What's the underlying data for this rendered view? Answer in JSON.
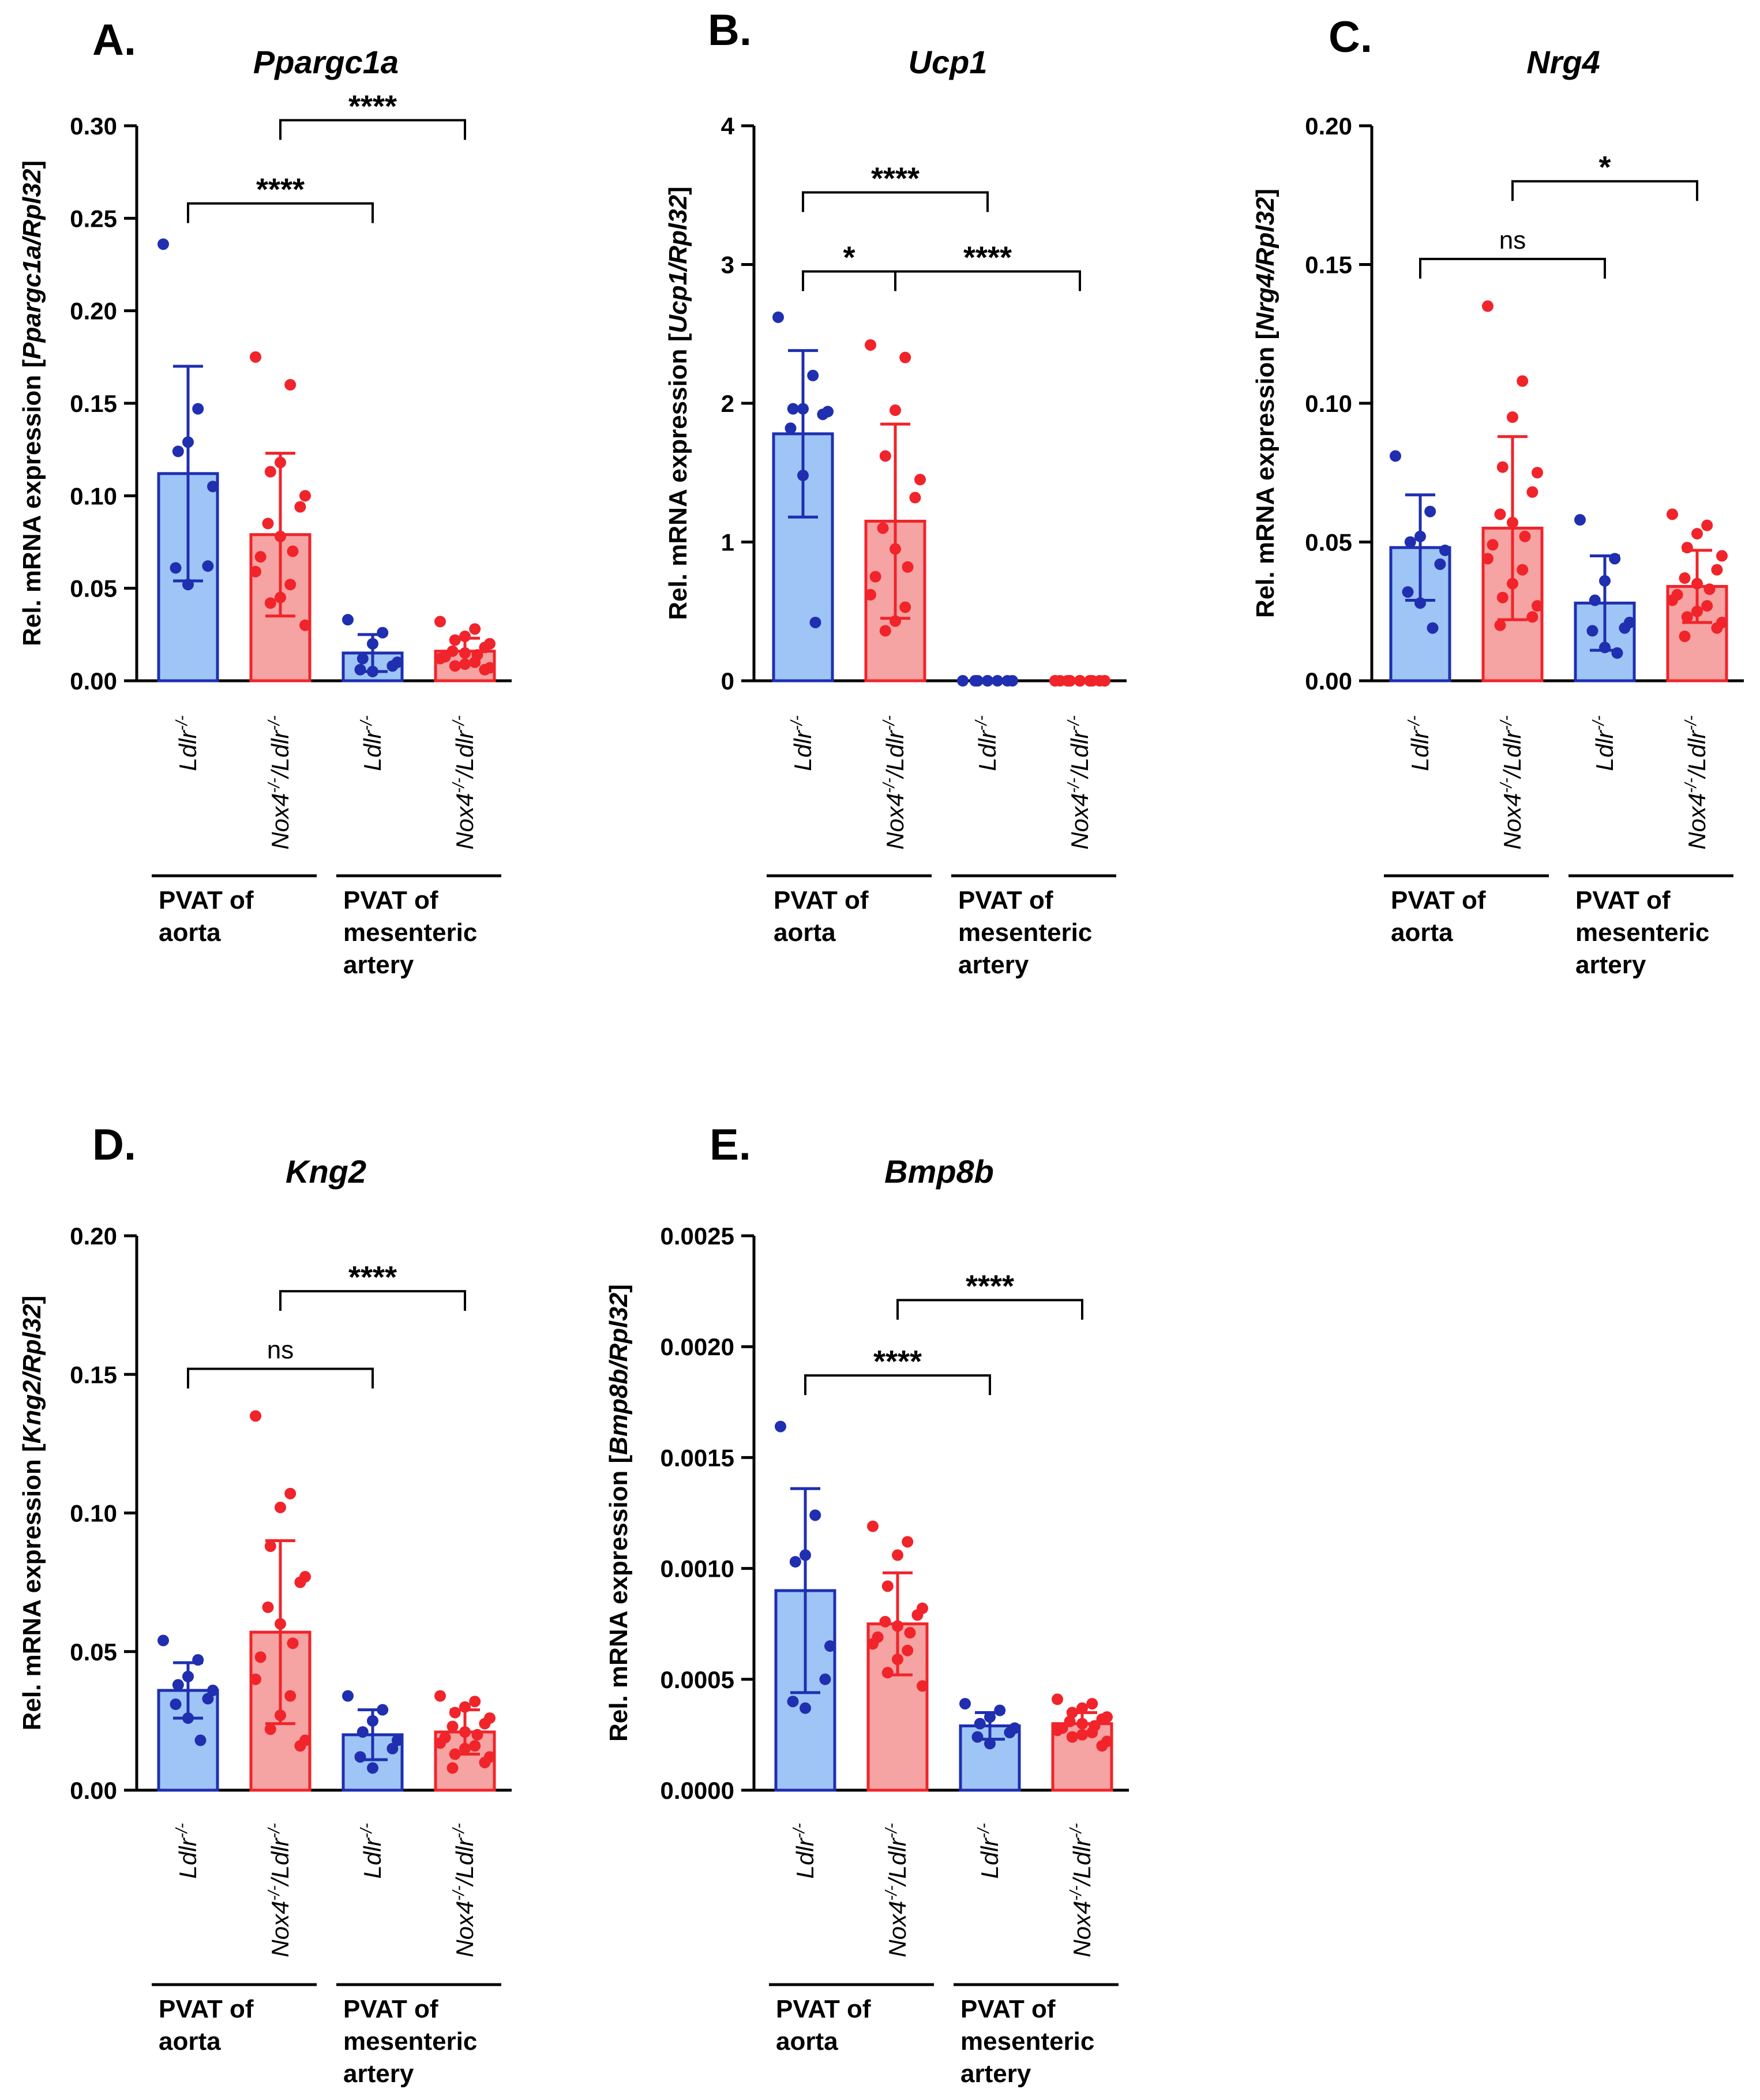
{
  "colors": {
    "blue_fill": "#9ec5f5",
    "blue_stroke": "#1f2fb0",
    "blue_dot": "#1f2fb0",
    "red_fill": "#f5a3a3",
    "red_stroke": "#f0242a",
    "red_dot": "#f0242a",
    "axis": "#000000"
  },
  "chart_data": [
    {
      "panel": "A.",
      "type": "bar",
      "title": "Ppargc1a",
      "ylabel_prefix": "Rel. mRNA expression [",
      "ylabel_gene": "Ppargc1a/Rpl32",
      "ylabel_suffix": "]",
      "ylim": [
        0,
        0.3
      ],
      "yticks": [
        "0.00",
        "0.05",
        "0.10",
        "0.15",
        "0.20",
        "0.25",
        "0.30"
      ],
      "categories": [
        "Ldlr-/-",
        "Nox4-/-/Ldlr-/-",
        "Ldlr-/-",
        "Nox4-/-/Ldlr-/-"
      ],
      "groups": [
        {
          "gene": "Ldlr",
          "sup": "-/-"
        },
        {
          "gene": "Nox4",
          "sup": "-/-",
          "gene2": "/Ldlr",
          "sup2": "-/-"
        },
        {
          "gene": "Ldlr",
          "sup": "-/-"
        },
        {
          "gene": "Nox4",
          "sup": "-/-",
          "gene2": "/Ldlr",
          "sup2": "-/-"
        }
      ],
      "series": [
        {
          "name": "Ldlr-/- PVAT of aorta",
          "color": "blue",
          "mean": 0.112,
          "sd": 0.058,
          "points": [
            0.236,
            0.147,
            0.129,
            0.124,
            0.105,
            0.062,
            0.061,
            0.052
          ]
        },
        {
          "name": "Nox4-/-/Ldlr-/- PVAT of aorta",
          "color": "red",
          "mean": 0.079,
          "sd": 0.044,
          "points": [
            0.175,
            0.16,
            0.118,
            0.113,
            0.1,
            0.094,
            0.085,
            0.078,
            0.07,
            0.067,
            0.059,
            0.052,
            0.045,
            0.042,
            0.03
          ]
        },
        {
          "name": "Ldlr-/- PVAT of mesenteric artery",
          "color": "blue",
          "mean": 0.015,
          "sd": 0.01,
          "points": [
            0.033,
            0.026,
            0.02,
            0.012,
            0.01,
            0.008,
            0.006,
            0.005
          ]
        },
        {
          "name": "Nox4-/-/Ldlr-/- PVAT of mesenteric artery",
          "color": "red",
          "mean": 0.016,
          "sd": 0.007,
          "points": [
            0.032,
            0.028,
            0.024,
            0.022,
            0.02,
            0.018,
            0.016,
            0.015,
            0.014,
            0.013,
            0.012,
            0.01,
            0.009,
            0.008,
            0.007,
            0.006
          ]
        }
      ],
      "regions": [
        {
          "lines": [
            "PVAT of",
            "aorta"
          ],
          "from": 0,
          "to": 1
        },
        {
          "lines": [
            "PVAT of",
            "mesenteric",
            "artery"
          ],
          "from": 2,
          "to": 3
        }
      ],
      "comparisons": [
        {
          "from": 0,
          "to": 2,
          "y": 0.258,
          "label": "****"
        },
        {
          "from": 1,
          "to": 3,
          "y": 0.303,
          "label": "****"
        }
      ]
    },
    {
      "panel": "B.",
      "type": "bar",
      "title": "Ucp1",
      "ylabel_prefix": "Rel. mRNA expression [",
      "ylabel_gene": "Ucp1/Rpl32",
      "ylabel_suffix": "]",
      "ylim": [
        0,
        4
      ],
      "yticks": [
        "0",
        "1",
        "2",
        "3",
        "4"
      ],
      "categories": [
        "Ldlr-/-",
        "Nox4-/-/Ldlr-/-",
        "Ldlr-/-",
        "Nox4-/-/Ldlr-/-"
      ],
      "groups": [
        {
          "gene": "Ldlr",
          "sup": "-/-"
        },
        {
          "gene": "Nox4",
          "sup": "-/-",
          "gene2": "/Ldlr",
          "sup2": "-/-"
        },
        {
          "gene": "Ldlr",
          "sup": "-/-"
        },
        {
          "gene": "Nox4",
          "sup": "-/-",
          "gene2": "/Ldlr",
          "sup2": "-/-"
        }
      ],
      "series": [
        {
          "name": "Ldlr-/- PVAT of aorta",
          "color": "blue",
          "mean": 1.78,
          "sd": 0.6,
          "points": [
            2.62,
            2.2,
            1.96,
            1.96,
            1.94,
            1.92,
            1.82,
            1.48,
            0.42
          ]
        },
        {
          "name": "Nox4-/-/Ldlr-/- PVAT of aorta",
          "color": "red",
          "mean": 1.15,
          "sd": 0.7,
          "points": [
            2.42,
            2.33,
            1.95,
            1.62,
            1.45,
            1.32,
            1.1,
            0.95,
            0.82,
            0.75,
            0.62,
            0.53,
            0.43,
            0.36
          ]
        },
        {
          "name": "Ldlr-/- PVAT of mesenteric artery",
          "color": "blue",
          "mean": 0.0,
          "sd": 0.0,
          "points": [
            0,
            0,
            0,
            0,
            0,
            0,
            0,
            0
          ]
        },
        {
          "name": "Nox4-/-/Ldlr-/- PVAT of mesenteric artery",
          "color": "red",
          "mean": 0.0,
          "sd": 0.0,
          "points": [
            0,
            0,
            0,
            0,
            0,
            0,
            0,
            0,
            0,
            0,
            0,
            0,
            0,
            0,
            0
          ]
        }
      ],
      "regions": [
        {
          "lines": [
            "PVAT of",
            "aorta"
          ],
          "from": 0,
          "to": 1
        },
        {
          "lines": [
            "PVAT of",
            "mesenteric",
            "artery"
          ],
          "from": 2,
          "to": 3
        }
      ],
      "comparisons": [
        {
          "from": 0,
          "to": 2,
          "y": 3.52,
          "label": "****"
        },
        {
          "from": 0,
          "to": 1,
          "y": 2.95,
          "label": "*"
        },
        {
          "from": 1,
          "to": 3,
          "y": 2.95,
          "label": "****"
        }
      ]
    },
    {
      "panel": "C.",
      "type": "bar",
      "title": "Nrg4",
      "ylabel_prefix": "Rel. mRNA expression [",
      "ylabel_gene": "Nrg4/Rpl32",
      "ylabel_suffix": "]",
      "ylim": [
        0,
        0.2
      ],
      "yticks": [
        "0.00",
        "0.05",
        "0.10",
        "0.15",
        "0.20"
      ],
      "categories": [
        "Ldlr-/-",
        "Nox4-/-/Ldlr-/-",
        "Ldlr-/-",
        "Nox4-/-/Ldlr-/-"
      ],
      "groups": [
        {
          "gene": "Ldlr",
          "sup": "-/-"
        },
        {
          "gene": "Nox4",
          "sup": "-/-",
          "gene2": "/Ldlr",
          "sup2": "-/-"
        },
        {
          "gene": "Ldlr",
          "sup": "-/-"
        },
        {
          "gene": "Nox4",
          "sup": "-/-",
          "gene2": "/Ldlr",
          "sup2": "-/-"
        }
      ],
      "series": [
        {
          "name": "Ldlr-/- PVAT of aorta",
          "color": "blue",
          "mean": 0.048,
          "sd": 0.019,
          "points": [
            0.081,
            0.061,
            0.052,
            0.05,
            0.047,
            0.042,
            0.032,
            0.028,
            0.019
          ]
        },
        {
          "name": "Nox4-/-/Ldlr-/- PVAT of aorta",
          "color": "red",
          "mean": 0.055,
          "sd": 0.033,
          "points": [
            0.135,
            0.108,
            0.095,
            0.077,
            0.075,
            0.068,
            0.06,
            0.057,
            0.052,
            0.049,
            0.044,
            0.04,
            0.035,
            0.03,
            0.027,
            0.023,
            0.02
          ]
        },
        {
          "name": "Ldlr-/- PVAT of mesenteric artery",
          "color": "blue",
          "mean": 0.028,
          "sd": 0.017,
          "points": [
            0.058,
            0.044,
            0.036,
            0.029,
            0.021,
            0.019,
            0.018,
            0.012,
            0.01
          ]
        },
        {
          "name": "Nox4-/-/Ldlr-/- PVAT of mesenteric artery",
          "color": "red",
          "mean": 0.034,
          "sd": 0.013,
          "points": [
            0.06,
            0.056,
            0.053,
            0.048,
            0.045,
            0.04,
            0.037,
            0.035,
            0.033,
            0.031,
            0.029,
            0.027,
            0.025,
            0.023,
            0.021,
            0.019,
            0.016
          ]
        }
      ],
      "regions": [
        {
          "lines": [
            "PVAT of",
            "aorta"
          ],
          "from": 0,
          "to": 1
        },
        {
          "lines": [
            "PVAT of",
            "mesenteric",
            "artery"
          ],
          "from": 2,
          "to": 3
        }
      ],
      "comparisons": [
        {
          "from": 0,
          "to": 2,
          "y": 0.152,
          "label": "ns"
        },
        {
          "from": 1,
          "to": 3,
          "y": 0.18,
          "label": "*"
        }
      ]
    },
    {
      "panel": "D.",
      "type": "bar",
      "title": "Kng2",
      "ylabel_prefix": "Rel. mRNA expression [",
      "ylabel_gene": "Kng2/Rpl32",
      "ylabel_suffix": "]",
      "ylim": [
        0,
        0.2
      ],
      "yticks": [
        "0.00",
        "0.05",
        "0.10",
        "0.15",
        "0.20"
      ],
      "categories": [
        "Ldlr-/-",
        "Nox4-/-/Ldlr-/-",
        "Ldlr-/-",
        "Nox4-/-/Ldlr-/-"
      ],
      "groups": [
        {
          "gene": "Ldlr",
          "sup": "-/-"
        },
        {
          "gene": "Nox4",
          "sup": "-/-",
          "gene2": "/Ldlr",
          "sup2": "-/-"
        },
        {
          "gene": "Ldlr",
          "sup": "-/-"
        },
        {
          "gene": "Nox4",
          "sup": "-/-",
          "gene2": "/Ldlr",
          "sup2": "-/-"
        }
      ],
      "series": [
        {
          "name": "Ldlr-/- PVAT of aorta",
          "color": "blue",
          "mean": 0.036,
          "sd": 0.01,
          "points": [
            0.054,
            0.047,
            0.041,
            0.038,
            0.036,
            0.033,
            0.031,
            0.026,
            0.018
          ]
        },
        {
          "name": "Nox4-/-/Ldlr-/- PVAT of aorta",
          "color": "red",
          "mean": 0.057,
          "sd": 0.033,
          "points": [
            0.135,
            0.107,
            0.102,
            0.088,
            0.077,
            0.075,
            0.066,
            0.06,
            0.053,
            0.048,
            0.04,
            0.034,
            0.027,
            0.022,
            0.018,
            0.016
          ]
        },
        {
          "name": "Ldlr-/- PVAT of mesenteric artery",
          "color": "blue",
          "mean": 0.02,
          "sd": 0.009,
          "points": [
            0.034,
            0.029,
            0.025,
            0.021,
            0.018,
            0.015,
            0.012,
            0.008
          ]
        },
        {
          "name": "Nox4-/-/Ldlr-/- PVAT of mesenteric artery",
          "color": "red",
          "mean": 0.021,
          "sd": 0.008,
          "points": [
            0.034,
            0.032,
            0.03,
            0.028,
            0.026,
            0.024,
            0.023,
            0.021,
            0.02,
            0.019,
            0.017,
            0.016,
            0.015,
            0.013,
            0.012,
            0.01,
            0.008
          ]
        }
      ],
      "regions": [
        {
          "lines": [
            "PVAT of",
            "aorta"
          ],
          "from": 0,
          "to": 1
        },
        {
          "lines": [
            "PVAT of",
            "mesenteric",
            "artery"
          ],
          "from": 2,
          "to": 3
        }
      ],
      "comparisons": [
        {
          "from": 0,
          "to": 2,
          "y": 0.152,
          "label": "ns"
        },
        {
          "from": 1,
          "to": 3,
          "y": 0.18,
          "label": "****"
        }
      ]
    },
    {
      "panel": "E.",
      "type": "bar",
      "title": "Bmp8b",
      "ylabel_prefix": "Rel. mRNA expression [",
      "ylabel_gene": "Bmp8b/Rpl32",
      "ylabel_suffix": "]",
      "ylim": [
        0,
        0.0025
      ],
      "yticks": [
        "0.0000",
        "0.0005",
        "0.0010",
        "0.0015",
        "0.0020",
        "0.0025"
      ],
      "categories": [
        "Ldlr-/-",
        "Nox4-/-/Ldlr-/-",
        "Ldlr-/-",
        "Nox4-/-/Ldlr-/-"
      ],
      "groups": [
        {
          "gene": "Ldlr",
          "sup": "-/-"
        },
        {
          "gene": "Nox4",
          "sup": "-/-",
          "gene2": "/Ldlr",
          "sup2": "-/-"
        },
        {
          "gene": "Ldlr",
          "sup": "-/-"
        },
        {
          "gene": "Nox4",
          "sup": "-/-",
          "gene2": "/Ldlr",
          "sup2": "-/-"
        }
      ],
      "series": [
        {
          "name": "Ldlr-/- PVAT of aorta",
          "color": "blue",
          "mean": 0.0009,
          "sd": 0.00046,
          "points": [
            0.00164,
            0.00124,
            0.00106,
            0.00103,
            0.00065,
            0.0005,
            0.0004,
            0.00037
          ]
        },
        {
          "name": "Nox4-/-/Ldlr-/- PVAT of aorta",
          "color": "red",
          "mean": 0.00075,
          "sd": 0.00023,
          "points": [
            0.00119,
            0.00112,
            0.00106,
            0.00092,
            0.00082,
            0.00079,
            0.00076,
            0.00074,
            0.00071,
            0.00069,
            0.00066,
            0.00063,
            0.00059,
            0.00053,
            0.00047
          ]
        },
        {
          "name": "Ldlr-/- PVAT of mesenteric artery",
          "color": "blue",
          "mean": 0.00029,
          "sd": 6e-05,
          "points": [
            0.00039,
            0.00036,
            0.00033,
            0.0003,
            0.00028,
            0.00026,
            0.00024,
            0.00021
          ]
        },
        {
          "name": "Nox4-/-/Ldlr-/- PVAT of mesenteric artery",
          "color": "red",
          "mean": 0.0003,
          "sd": 5e-05,
          "points": [
            0.00041,
            0.00039,
            0.00037,
            0.00035,
            0.00033,
            0.00032,
            0.00031,
            0.0003,
            0.00029,
            0.00028,
            0.00027,
            0.00026,
            0.00025,
            0.00024,
            0.00022,
            0.0002
          ]
        }
      ],
      "regions": [
        {
          "lines": [
            "PVAT of",
            "aorta"
          ],
          "from": 0,
          "to": 1
        },
        {
          "lines": [
            "PVAT of",
            "mesenteric",
            "artery"
          ],
          "from": 2,
          "to": 3
        }
      ],
      "comparisons": [
        {
          "from": 0,
          "to": 2,
          "y": 0.00187,
          "label": "****"
        },
        {
          "from": 1,
          "to": 3,
          "y": 0.00221,
          "label": "****"
        }
      ]
    }
  ]
}
